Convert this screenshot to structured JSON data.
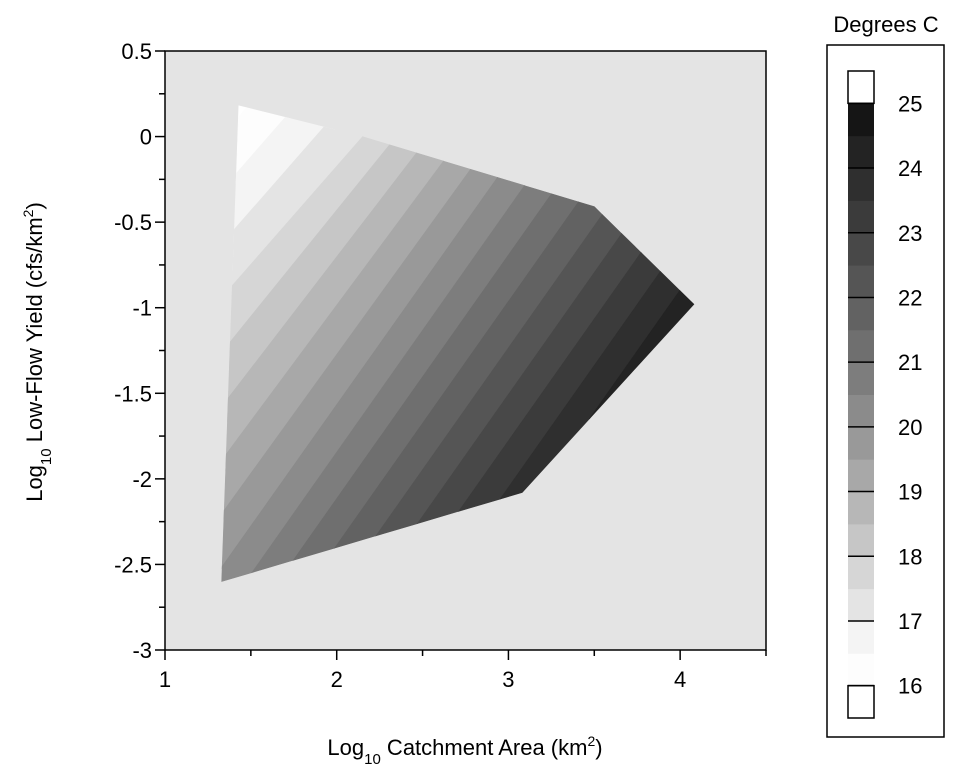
{
  "chart_data": {
    "type": "heatmap",
    "title": "",
    "xlabel": {
      "prefix": "Log",
      "subscript": "10",
      "text": " Catchment Area (km",
      "superscript": "2",
      "suffix": ")"
    },
    "ylabel": {
      "prefix": "Log",
      "subscript": "10",
      "text": " Low-Flow Yield (cfs/km",
      "superscript": "2",
      "suffix": ")"
    },
    "xlim": [
      1,
      4.5
    ],
    "ylim": [
      -3,
      0.5
    ],
    "x_ticks": [
      1,
      2,
      3,
      4
    ],
    "x_tick_labels": [
      "1",
      "2",
      "3",
      "4"
    ],
    "y_ticks": [
      0.5,
      0,
      -0.5,
      -1,
      -1.5,
      -2,
      -2.5,
      -3
    ],
    "y_tick_labels": [
      "0.5",
      "0",
      "-0.5",
      "-1",
      "-1.5",
      "-2",
      "-2.5",
      "-3"
    ],
    "background_color": "#e4e4e4",
    "domain_polygon": [
      [
        1.43,
        0.18
      ],
      [
        2.15,
        0.0
      ],
      [
        3.5,
        -0.41
      ],
      [
        4.08,
        -0.98
      ],
      [
        3.08,
        -2.08
      ],
      [
        1.33,
        -2.6
      ],
      [
        1.43,
        0.18
      ]
    ],
    "gradient_direction": {
      "from": [
        1.4,
        -0.2
      ],
      "to": [
        3.75,
        -1.85
      ]
    },
    "value_range": [
      15.9,
      25.1
    ],
    "contour_levels": [
      16,
      16.5,
      17,
      17.5,
      18,
      18.5,
      19,
      19.5,
      20,
      20.5,
      21,
      21.5,
      22,
      22.5,
      23,
      23.5,
      24,
      24.5,
      25
    ],
    "colorbar": {
      "title": "Degrees C",
      "labels": [
        "25",
        "24",
        "23",
        "22",
        "21",
        "20",
        "19",
        "18",
        "17",
        "16"
      ],
      "label_values": [
        25,
        24,
        23,
        22,
        21,
        20,
        19,
        18,
        17,
        16
      ],
      "range": [
        15.5,
        25.5
      ],
      "colors": [
        {
          "min": 15.5,
          "max": 16.0,
          "color": "#ffffff"
        },
        {
          "min": 16.0,
          "max": 16.5,
          "color": "#fdfdfd"
        },
        {
          "min": 16.5,
          "max": 17.0,
          "color": "#f4f4f4"
        },
        {
          "min": 17.0,
          "max": 17.5,
          "color": "#e4e4e4"
        },
        {
          "min": 17.5,
          "max": 18.0,
          "color": "#d6d6d6"
        },
        {
          "min": 18.0,
          "max": 18.5,
          "color": "#c6c6c6"
        },
        {
          "min": 18.5,
          "max": 19.0,
          "color": "#b7b7b7"
        },
        {
          "min": 19.0,
          "max": 19.5,
          "color": "#a8a8a8"
        },
        {
          "min": 19.5,
          "max": 20.0,
          "color": "#999999"
        },
        {
          "min": 20.0,
          "max": 20.5,
          "color": "#8b8b8b"
        },
        {
          "min": 20.5,
          "max": 21.0,
          "color": "#7d7d7d"
        },
        {
          "min": 21.0,
          "max": 21.5,
          "color": "#6f6f6f"
        },
        {
          "min": 21.5,
          "max": 22.0,
          "color": "#626262"
        },
        {
          "min": 22.0,
          "max": 22.5,
          "color": "#555555"
        },
        {
          "min": 22.5,
          "max": 23.0,
          "color": "#484848"
        },
        {
          "min": 23.0,
          "max": 23.5,
          "color": "#3b3b3b"
        },
        {
          "min": 23.5,
          "max": 24.0,
          "color": "#2f2f2f"
        },
        {
          "min": 24.0,
          "max": 24.5,
          "color": "#232323"
        },
        {
          "min": 24.5,
          "max": 25.0,
          "color": "#151515"
        },
        {
          "min": 25.0,
          "max": 25.5,
          "color": "#ffffff"
        }
      ]
    }
  }
}
